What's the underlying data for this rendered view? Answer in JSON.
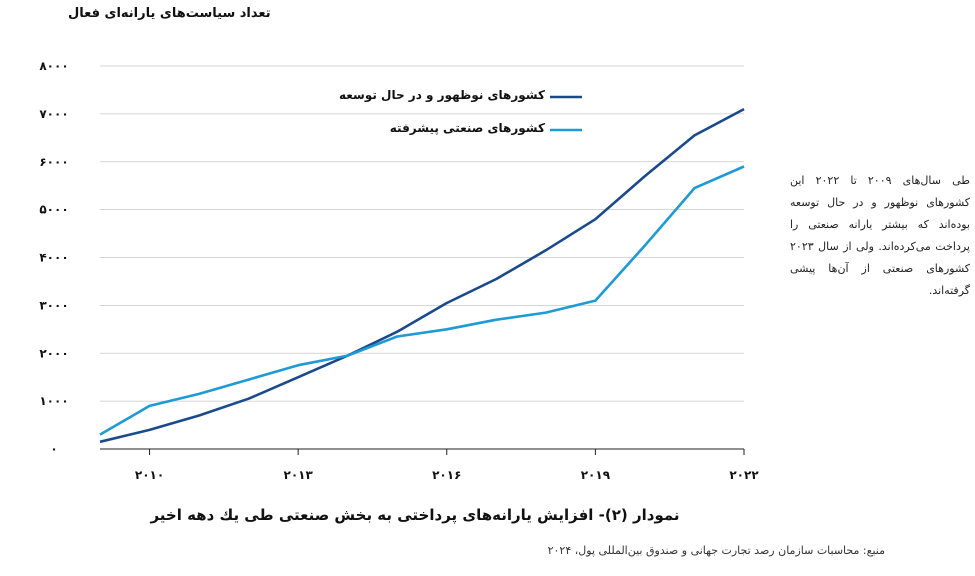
{
  "chart_data": {
    "type": "line",
    "title": "",
    "ylabel": "تعداد سیاست‌های یارانه‌ای فعال",
    "xlabel": "",
    "x_ticks": [
      "۲۰۱۰",
      "۲۰۱۳",
      "۲۰۱۶",
      "۲۰۱۹",
      "۲۰۲۲"
    ],
    "x_tick_values": [
      2010,
      2013,
      2016,
      2019,
      2022
    ],
    "y_ticks": [
      "۰",
      "۱۰۰۰",
      "۲۰۰۰",
      "۳۰۰۰",
      "۴۰۰۰",
      "۵۰۰۰",
      "۶۰۰۰",
      "۷۰۰۰",
      "۸۰۰۰"
    ],
    "y_tick_values": [
      0,
      1000,
      2000,
      3000,
      4000,
      5000,
      6000,
      7000,
      8000
    ],
    "xlim": [
      2009,
      2022
    ],
    "ylim": [
      0,
      8000
    ],
    "grid": "horizontal",
    "legend_position": "top-center",
    "x": [
      2009,
      2010,
      2011,
      2012,
      2013,
      2014,
      2015,
      2016,
      2017,
      2018,
      2019,
      2020,
      2021,
      2022
    ],
    "series": [
      {
        "name": "کشورهای نوظهور و در حال توسعه",
        "color": "#1b4a8c",
        "values": [
          150,
          400,
          700,
          1050,
          1500,
          1950,
          2450,
          3050,
          3550,
          4150,
          4800,
          5700,
          6550,
          7100
        ]
      },
      {
        "name": "کشورهای صنعتی پیشرفته",
        "color": "#1e9ad6",
        "values": [
          300,
          900,
          1150,
          1450,
          1750,
          1950,
          2350,
          2500,
          2700,
          2850,
          3100,
          4250,
          5450,
          5900
        ]
      }
    ]
  },
  "side_note": "طی سال‌های ۲۰۰۹ تا ۲۰۲۲ این کشورهای نوظهور و در حال توسعه بوده‌اند که بیشتر یارانه صنعتی را پرداخت می‌کرده‌اند. ولی از سال ۲۰۲۳ کشورهای صنعتی از آن‌ها پیشی گرفته‌اند.",
  "caption": "نمودار (۲)- افزایش یارانه‌های پرداختی به بخش صنعتی طی یك دهه اخیر",
  "source": "منبع: محاسبات سازمان رصد تجارت جهانی و صندوق بین‌المللی پول، ۲۰۲۴"
}
